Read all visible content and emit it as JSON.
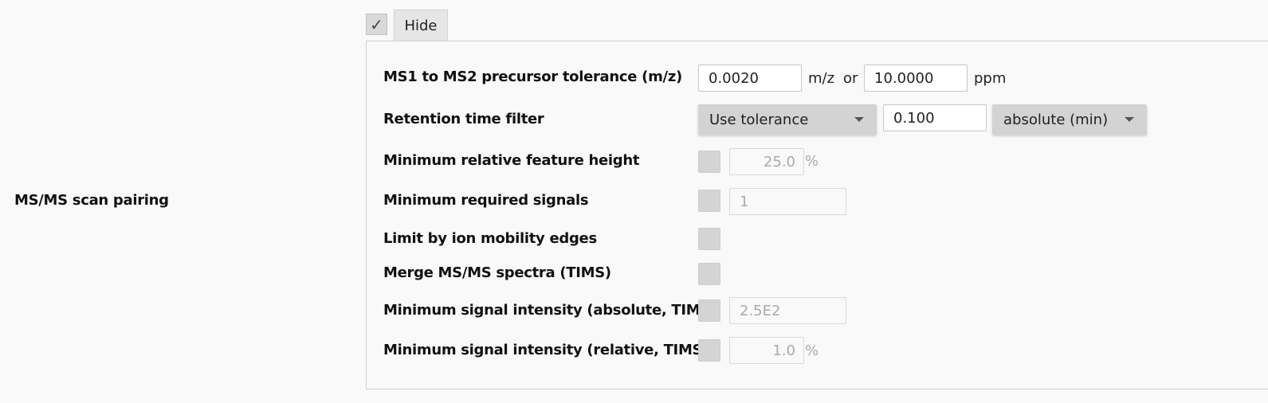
{
  "section_label": "MS/MS scan pairing",
  "hide": {
    "checkbox_glyph": "✓",
    "label": "Hide"
  },
  "precursor_tolerance": {
    "label": "MS1 to MS2 precursor tolerance (m/z)",
    "mz_value": "0.0020",
    "mz_unit": "m/z",
    "or_text": "or",
    "ppm_value": "10.0000",
    "ppm_unit": "ppm"
  },
  "retention_time": {
    "label": "Retention time filter",
    "mode": "Use tolerance",
    "value": "0.100",
    "unit": "absolute (min)"
  },
  "min_feature_height": {
    "label": "Minimum relative feature height",
    "value": "25.0",
    "unit": "%"
  },
  "min_signals": {
    "label": "Minimum required signals",
    "value": "1"
  },
  "ion_mobility_edges": {
    "label": "Limit by ion mobility edges"
  },
  "merge_tims": {
    "label": "Merge MS/MS spectra (TIMS)"
  },
  "min_abs_intensity": {
    "label": "Minimum signal intensity (absolute, TIMS)",
    "value": "2.5E2"
  },
  "min_rel_intensity": {
    "label": "Minimum signal intensity (relative, TIMS)",
    "value": "1.0",
    "unit": "%"
  }
}
